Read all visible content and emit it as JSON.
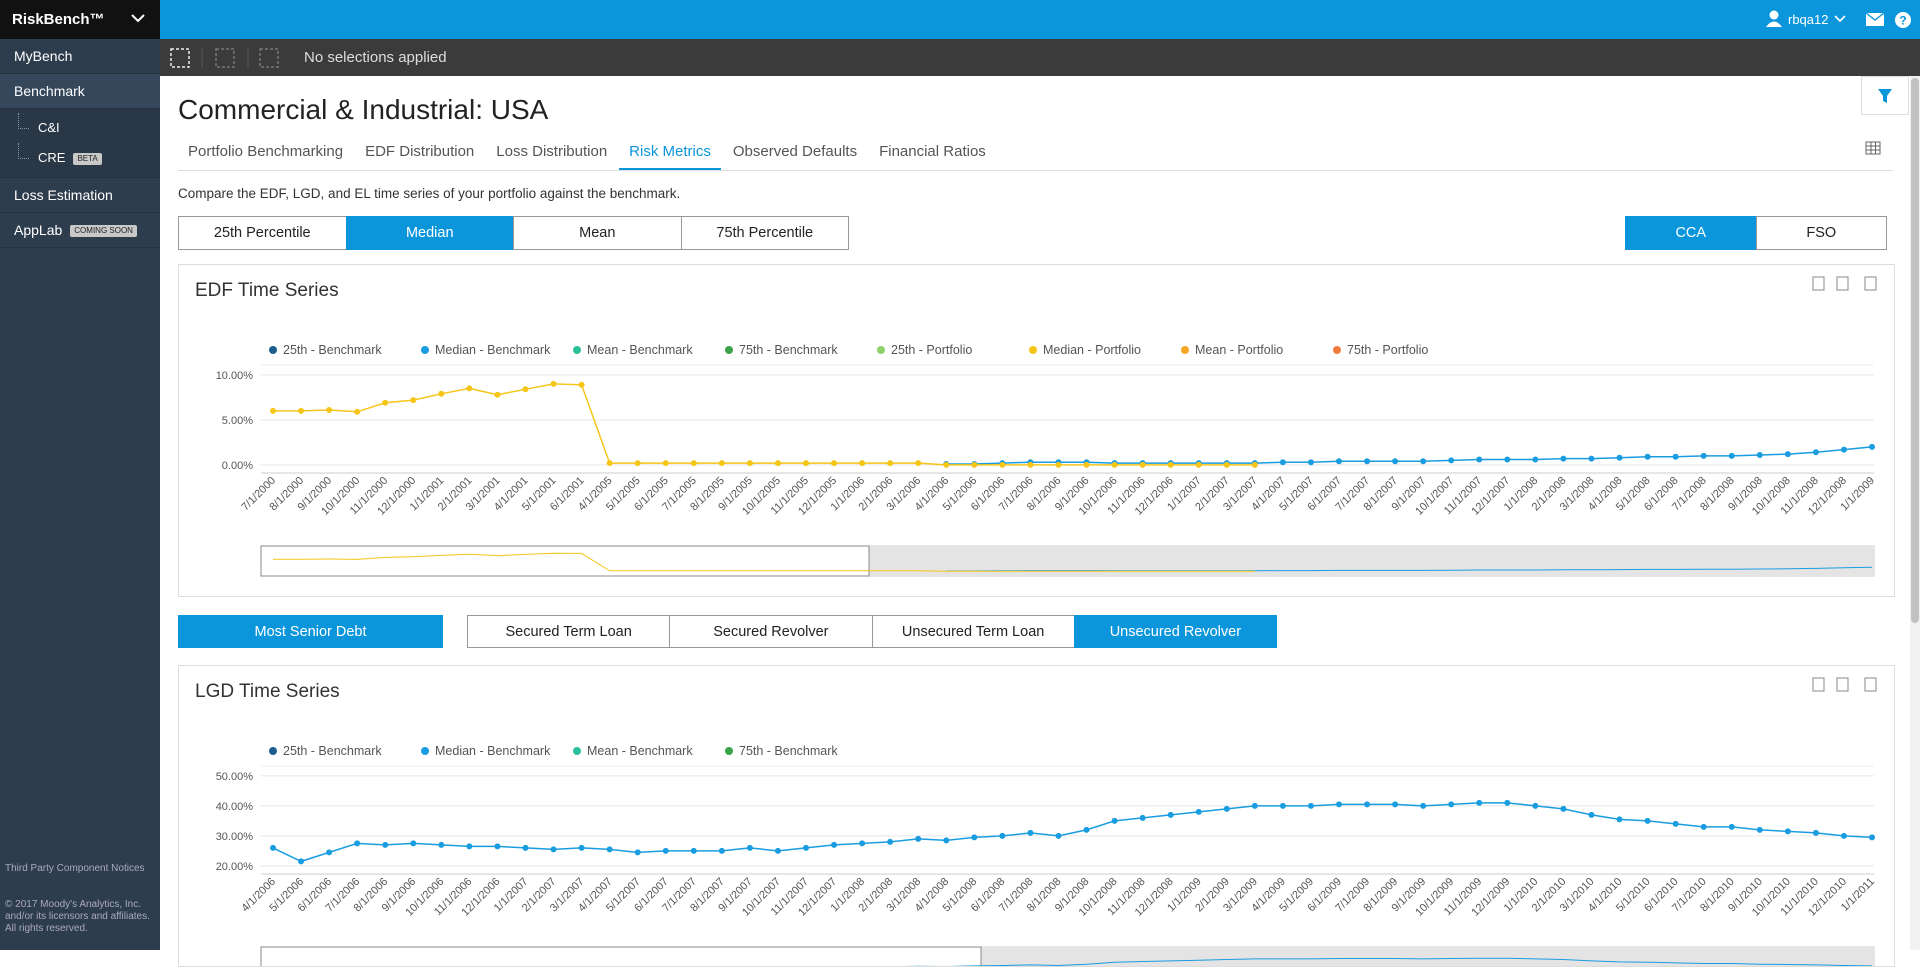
{
  "header": {
    "brand": "RiskBench™",
    "user": "rbqa12"
  },
  "toolbar": {
    "status": "No selections applied"
  },
  "nav": [
    {
      "label": "MyBench"
    },
    {
      "label": "Benchmark",
      "children": [
        {
          "label": "C&I"
        },
        {
          "label": "CRE",
          "badge": "BETA"
        }
      ]
    },
    {
      "label": "Loss Estimation"
    },
    {
      "label": "AppLab",
      "badge": "COMING SOON"
    }
  ],
  "footer": {
    "notices": "Third Party Component Notices",
    "copyright": "© 2017 Moody's Analytics, Inc. and/or its licensors and affiliates. All rights reserved."
  },
  "page": {
    "title": "Commercial & Industrial: USA",
    "tabs": {
      "items": [
        "Portfolio Benchmarking",
        "EDF Distribution",
        "Loss Distribution",
        "Risk Metrics",
        "Observed Defaults",
        "Financial Ratios"
      ],
      "active": 3
    },
    "description": "Compare the EDF, LGD, and EL time series of your portfolio against the benchmark.",
    "percentile_buttons": {
      "items": [
        "25th Percentile",
        "Median",
        "Mean",
        "75th Percentile"
      ],
      "active": 1
    },
    "model_buttons": {
      "items": [
        "CCA",
        "FSO"
      ],
      "active": 0
    },
    "debt_buttons": {
      "items": [
        "Most Senior Debt"
      ],
      "active": 0
    },
    "facility_buttons": {
      "items": [
        "Secured Term Loan",
        "Secured Revolver",
        "Unsecured Term Loan",
        "Unsecured Revolver"
      ],
      "active": 3
    }
  },
  "chart_data": [
    {
      "type": "line",
      "title": "EDF Time Series",
      "categories": [
        "7/1/2000",
        "8/1/2000",
        "9/1/2000",
        "10/1/2000",
        "11/1/2000",
        "12/1/2000",
        "1/1/2001",
        "2/1/2001",
        "3/1/2001",
        "4/1/2001",
        "5/1/2001",
        "6/1/2001",
        "4/1/2005",
        "5/1/2005",
        "6/1/2005",
        "7/1/2005",
        "8/1/2005",
        "9/1/2005",
        "10/1/2005",
        "11/1/2005",
        "12/1/2005",
        "1/1/2006",
        "2/1/2006",
        "3/1/2006",
        "4/1/2006",
        "5/1/2006",
        "6/1/2006",
        "7/1/2006",
        "8/1/2006",
        "9/1/2006",
        "10/1/2006",
        "11/1/2006",
        "12/1/2006",
        "1/1/2007",
        "2/1/2007",
        "3/1/2007",
        "4/1/2007",
        "5/1/2007",
        "6/1/2007",
        "7/1/2007",
        "8/1/2007",
        "9/1/2007",
        "10/1/2007",
        "11/1/2007",
        "12/1/2007",
        "1/1/2008",
        "2/1/2008",
        "3/1/2008",
        "4/1/2008",
        "5/1/2008",
        "6/1/2008",
        "7/1/2008",
        "8/1/2008",
        "9/1/2008",
        "10/1/2008",
        "11/1/2008",
        "12/1/2008",
        "1/1/2009"
      ],
      "ylim": [
        -0.9,
        11.1
      ],
      "yticks": [
        {
          "value": 0,
          "label": "0.00%"
        },
        {
          "value": 5,
          "label": "5.00%"
        },
        {
          "value": 10,
          "label": "10.00%"
        }
      ],
      "grid": true,
      "series": [
        {
          "name": "25th - Benchmark",
          "color": "#1c5f8e",
          "values": [
            null,
            null,
            null,
            null,
            null,
            null,
            null,
            null,
            null,
            null,
            null,
            null,
            null,
            null,
            null,
            null,
            null,
            null,
            null,
            null,
            null,
            null,
            null,
            null,
            null,
            null,
            null,
            null,
            null,
            null,
            null,
            null,
            null,
            null,
            null,
            null,
            null,
            null,
            null,
            null,
            null,
            null,
            null,
            null,
            null,
            null,
            null,
            null,
            null,
            null,
            null,
            null,
            null,
            null,
            null,
            null,
            null,
            null
          ]
        },
        {
          "name": "Median - Benchmark",
          "color": "#1a9de0",
          "values": [
            null,
            null,
            null,
            null,
            null,
            null,
            null,
            null,
            null,
            null,
            null,
            null,
            null,
            null,
            null,
            null,
            null,
            null,
            null,
            null,
            null,
            null,
            null,
            null,
            0.1,
            0.1,
            0.2,
            0.3,
            0.3,
            0.3,
            0.2,
            0.2,
            0.2,
            0.2,
            0.2,
            0.2,
            0.3,
            0.3,
            0.4,
            0.4,
            0.4,
            0.4,
            0.5,
            0.6,
            0.6,
            0.6,
            0.7,
            0.7,
            0.8,
            0.9,
            0.9,
            1.0,
            1.0,
            1.1,
            1.2,
            1.4,
            1.7,
            2.0
          ]
        },
        {
          "name": "Mean - Benchmark",
          "color": "#2bbf9a",
          "values": [
            null,
            null,
            null,
            null,
            null,
            null,
            null,
            null,
            null,
            null,
            null,
            null,
            null,
            null,
            null,
            null,
            null,
            null,
            null,
            null,
            null,
            null,
            null,
            null,
            null,
            null,
            null,
            null,
            null,
            null,
            null,
            null,
            null,
            null,
            null,
            null,
            null,
            null,
            null,
            null,
            null,
            null,
            null,
            null,
            null,
            null,
            null,
            null,
            null,
            null,
            null,
            null,
            null,
            null,
            null,
            null,
            null,
            null
          ]
        },
        {
          "name": "75th - Benchmark",
          "color": "#3aa34a",
          "values": [
            null,
            null,
            null,
            null,
            null,
            null,
            null,
            null,
            null,
            null,
            null,
            null,
            null,
            null,
            null,
            null,
            null,
            null,
            null,
            null,
            null,
            null,
            null,
            null,
            null,
            null,
            null,
            null,
            null,
            null,
            null,
            null,
            null,
            null,
            null,
            null,
            null,
            null,
            null,
            null,
            null,
            null,
            null,
            null,
            null,
            null,
            null,
            null,
            null,
            null,
            null,
            null,
            null,
            null,
            null,
            null,
            null,
            null
          ]
        },
        {
          "name": "25th - Portfolio",
          "color": "#8fd16b",
          "values": [
            null,
            null,
            null,
            null,
            null,
            null,
            null,
            null,
            null,
            null,
            null,
            null,
            null,
            null,
            null,
            null,
            null,
            null,
            null,
            null,
            null,
            null,
            null,
            null,
            null,
            null,
            null,
            null,
            null,
            null,
            null,
            null,
            null,
            null,
            null,
            null,
            null,
            null,
            null,
            null,
            null,
            null,
            null,
            null,
            null,
            null,
            null,
            null,
            null,
            null,
            null,
            null,
            null,
            null,
            null,
            null,
            null,
            null
          ]
        },
        {
          "name": "Median - Portfolio",
          "color": "#f5c518",
          "values": [
            6.0,
            6.0,
            6.1,
            5.9,
            6.9,
            7.2,
            7.9,
            8.5,
            7.8,
            8.4,
            9.0,
            8.9,
            0.2,
            0.2,
            0.2,
            0.2,
            0.2,
            0.2,
            0.2,
            0.2,
            0.2,
            0.2,
            0.2,
            0.2,
            0.0,
            0.0,
            0.0,
            0.0,
            0.0,
            0.0,
            0.0,
            0.0,
            0.0,
            0.0,
            0.0,
            0.0,
            null,
            null,
            null,
            null,
            null,
            null,
            null,
            null,
            null,
            null,
            null,
            null,
            null,
            null,
            null,
            null,
            null,
            null,
            null,
            null,
            null,
            null
          ]
        },
        {
          "name": "Mean - Portfolio",
          "color": "#f5a623",
          "values": [
            null,
            null,
            null,
            null,
            null,
            null,
            null,
            null,
            null,
            null,
            null,
            null,
            null,
            null,
            null,
            null,
            null,
            null,
            null,
            null,
            null,
            null,
            null,
            null,
            null,
            null,
            null,
            null,
            null,
            null,
            null,
            null,
            null,
            null,
            null,
            null,
            null,
            null,
            null,
            null,
            null,
            null,
            null,
            null,
            null,
            null,
            null,
            null,
            null,
            null,
            null,
            null,
            null,
            null,
            null,
            null,
            null,
            null
          ]
        },
        {
          "name": "75th - Portfolio",
          "color": "#f07b3f",
          "values": [
            null,
            null,
            null,
            null,
            null,
            null,
            null,
            null,
            null,
            null,
            null,
            null,
            null,
            null,
            null,
            null,
            null,
            null,
            null,
            null,
            null,
            null,
            null,
            null,
            null,
            null,
            null,
            null,
            null,
            null,
            null,
            null,
            null,
            null,
            null,
            null,
            null,
            null,
            null,
            null,
            null,
            null,
            null,
            null,
            null,
            null,
            null,
            null,
            null,
            null,
            null,
            null,
            null,
            null,
            null,
            null,
            null,
            null
          ]
        }
      ]
    },
    {
      "type": "line",
      "title": "LGD Time Series",
      "categories": [
        "4/1/2006",
        "5/1/2006",
        "6/1/2006",
        "7/1/2006",
        "8/1/2006",
        "9/1/2006",
        "10/1/2006",
        "11/1/2006",
        "12/1/2006",
        "1/1/2007",
        "2/1/2007",
        "3/1/2007",
        "4/1/2007",
        "5/1/2007",
        "6/1/2007",
        "7/1/2007",
        "8/1/2007",
        "9/1/2007",
        "10/1/2007",
        "11/1/2007",
        "12/1/2007",
        "1/1/2008",
        "2/1/2008",
        "3/1/2008",
        "4/1/2008",
        "5/1/2008",
        "6/1/2008",
        "7/1/2008",
        "8/1/2008",
        "9/1/2008",
        "10/1/2008",
        "11/1/2008",
        "12/1/2008",
        "1/1/2009",
        "2/1/2009",
        "3/1/2009",
        "4/1/2009",
        "5/1/2009",
        "6/1/2009",
        "7/1/2009",
        "8/1/2009",
        "9/1/2009",
        "10/1/2009",
        "11/1/2009",
        "12/1/2009",
        "1/1/2010",
        "2/1/2010",
        "3/1/2010",
        "4/1/2010",
        "5/1/2010",
        "6/1/2010",
        "7/1/2010",
        "8/1/2010",
        "9/1/2010",
        "10/1/2010",
        "11/1/2010",
        "12/1/2010",
        "1/1/2011"
      ],
      "ylim": [
        17.3,
        53.3
      ],
      "yticks": [
        {
          "value": 20,
          "label": "20.00%"
        },
        {
          "value": 30,
          "label": "30.00%"
        },
        {
          "value": 40,
          "label": "40.00%"
        },
        {
          "value": 50,
          "label": "50.00%"
        }
      ],
      "grid": true,
      "series": [
        {
          "name": "25th - Benchmark",
          "color": "#1c5f8e",
          "values": [
            null,
            null,
            null,
            null,
            null,
            null,
            null,
            null,
            null,
            null,
            null,
            null,
            null,
            null,
            null,
            null,
            null,
            null,
            null,
            null,
            null,
            null,
            null,
            null,
            null,
            null,
            null,
            null,
            null,
            null,
            null,
            null,
            null,
            null,
            null,
            null,
            null,
            null,
            null,
            null,
            null,
            null,
            null,
            null,
            null,
            null,
            null,
            null,
            null,
            null,
            null,
            null,
            null,
            null,
            null,
            null,
            null,
            null
          ]
        },
        {
          "name": "Median - Benchmark",
          "color": "#1a9de0",
          "values": [
            26,
            21.5,
            24.5,
            27.5,
            27,
            27.5,
            27,
            26.5,
            26.5,
            26,
            25.5,
            26,
            25.5,
            24.5,
            25,
            25,
            25,
            26,
            25,
            26,
            27,
            27.5,
            28,
            29,
            28.5,
            29.5,
            30,
            31,
            30,
            32,
            35,
            36,
            37,
            38,
            39,
            40,
            40,
            40,
            40.5,
            40.5,
            40.5,
            40,
            40.5,
            41,
            41,
            40,
            39,
            37,
            35.5,
            35,
            34,
            33,
            33,
            32,
            31.5,
            31,
            30,
            29.5
          ]
        },
        {
          "name": "Mean - Benchmark",
          "color": "#2bbf9a",
          "values": [
            null,
            null,
            null,
            null,
            null,
            null,
            null,
            null,
            null,
            null,
            null,
            null,
            null,
            null,
            null,
            null,
            null,
            null,
            null,
            null,
            null,
            null,
            null,
            null,
            null,
            null,
            null,
            null,
            null,
            null,
            null,
            null,
            null,
            null,
            null,
            null,
            null,
            null,
            null,
            null,
            null,
            null,
            null,
            null,
            null,
            null,
            null,
            null,
            null,
            null,
            null,
            null,
            null,
            null,
            null,
            null,
            null,
            null
          ]
        },
        {
          "name": "75th - Benchmark",
          "color": "#3aa34a",
          "values": [
            null,
            null,
            null,
            null,
            null,
            null,
            null,
            null,
            null,
            null,
            null,
            null,
            null,
            null,
            null,
            null,
            null,
            null,
            null,
            null,
            null,
            null,
            null,
            null,
            null,
            null,
            null,
            null,
            null,
            null,
            null,
            null,
            null,
            null,
            null,
            null,
            null,
            null,
            null,
            null,
            null,
            null,
            null,
            null,
            null,
            null,
            null,
            null,
            null,
            null,
            null,
            null,
            null,
            null,
            null,
            null,
            null,
            null
          ]
        }
      ]
    }
  ]
}
